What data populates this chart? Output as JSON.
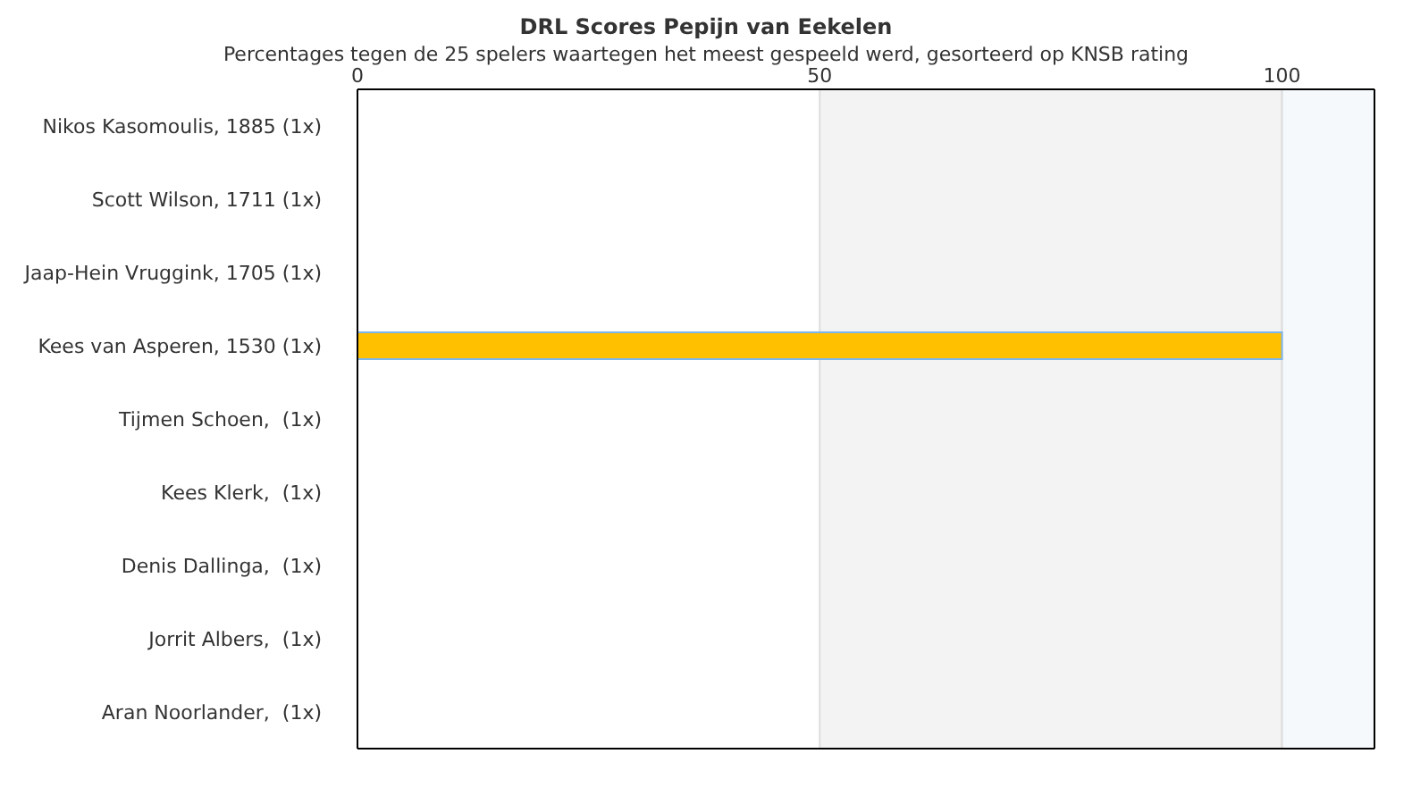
{
  "chart_data": {
    "type": "bar",
    "orientation": "horizontal",
    "title": "DRL Scores Pepijn van Eekelen",
    "subtitle": "Percentages tegen de 25 spelers waartegen het meest gespeeld werd, gesorteerd op KNSB rating",
    "categories": [
      "Nikos Kasomoulis, 1885 (1x)",
      "Scott Wilson, 1711 (1x)",
      "Jaap-Hein Vruggink, 1705 (1x)",
      "Kees van Asperen, 1530 (1x)",
      "Tijmen Schoen,  (1x)",
      "Kees Klerk,  (1x)",
      "Denis Dallinga,  (1x)",
      "Jorrit Albers,  (1x)",
      "Aran Noorlander,  (1x)"
    ],
    "values": [
      0,
      0,
      0,
      100,
      0,
      0,
      0,
      0,
      0
    ],
    "color": "#ffc000",
    "xlim": [
      0,
      110
    ],
    "xticks": [
      0,
      50,
      100
    ],
    "bands": [
      {
        "axis": "x",
        "from": 50,
        "to": 100,
        "color": "#f3f3f3"
      },
      {
        "axis": "x",
        "from": 100,
        "to": 110,
        "color": "#f5f9fc"
      }
    ],
    "grid": false
  }
}
